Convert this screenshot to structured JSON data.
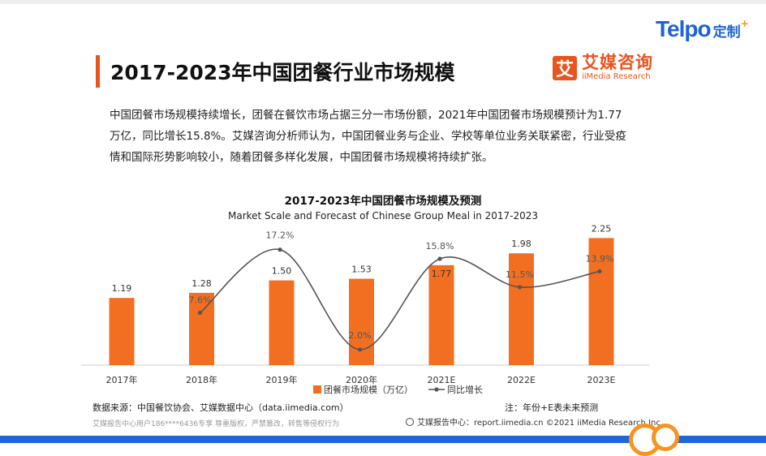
{
  "brand_corner": {
    "logo": "Telpo",
    "tag": "定制",
    "plus": "+"
  },
  "header": {
    "title": "2017-2023年中国团餐行业市场规模"
  },
  "brand": {
    "mark": "艾",
    "name_cn": "艾媒咨询",
    "name_en": "iiMedia Research"
  },
  "paragraph": "中国团餐市场规模持续增长，团餐在餐饮市场占据三分一市场份额，2021年中国团餐市场规模预计为1.77万亿，同比增长15.8%。艾媒咨询分析师认为，中国团餐业务与企业、学校等单位业务关联紧密，行业受疫情和国际形势影响较小，随着团餐多样化发展，中国团餐市场规模将持续扩张。",
  "chart_data": {
    "type": "bar",
    "title": "2017-2023年中国团餐市场规模及预测",
    "subtitle": "Market Scale and Forecast of Chinese Group Meal in 2017-2023",
    "categories": [
      "2017年",
      "2018年",
      "2019年",
      "2020年",
      "2021E",
      "2022E",
      "2023E"
    ],
    "series": [
      {
        "name": "团餐市场规模（万亿）",
        "type": "bar",
        "values": [
          1.19,
          1.28,
          1.5,
          1.53,
          1.77,
          1.98,
          2.25
        ],
        "labels": [
          "1.19",
          "1.28",
          "1.50",
          "1.53",
          "1.77",
          "1.98",
          "2.25"
        ],
        "color": "#f26f21"
      },
      {
        "name": "同比增长",
        "type": "line",
        "values": [
          null,
          7.6,
          17.2,
          2.0,
          15.8,
          11.5,
          13.9
        ],
        "labels": [
          "",
          "7.6%",
          "17.2%",
          "2.0%",
          "15.8%",
          "11.5%",
          "13.9%"
        ],
        "color": "#555555"
      }
    ],
    "legend_position": "bottom"
  },
  "source": "数据来源：中国餐饮协会、艾媒数据中心（data.iimedia.com）",
  "note": "注：年份+E表未来预测",
  "footer": {
    "left": "艾媒报告中心用户186****6436专享 尊重版权，严禁篡改，转售等侵权行为",
    "right": "艾媒报告中心：report.iimedia.cn    ©2021  iiMedia Research  Inc"
  }
}
